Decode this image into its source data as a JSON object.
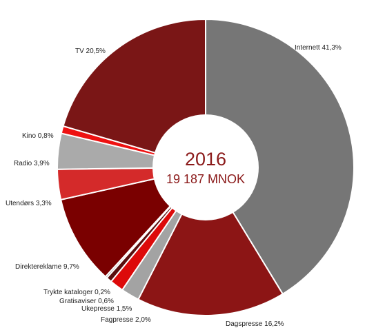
{
  "chart_data": {
    "type": "pie",
    "variant": "donut",
    "center_title": "2016",
    "center_subtitle": "19 187 MNOK",
    "start_angle_deg": 0,
    "direction": "clockwise",
    "slices": [
      {
        "name": "Internett",
        "value": 41.3,
        "label": "Internett 41,3%",
        "color": "#767676"
      },
      {
        "name": "Dagspresse",
        "value": 16.2,
        "label": "Dagspresse 16,2%",
        "color": "#8c1515"
      },
      {
        "name": "Fagpresse",
        "value": 2.0,
        "label": "Fagpresse 2,0%",
        "color": "#a3a3a3"
      },
      {
        "name": "Ukepresse",
        "value": 1.5,
        "label": "Ukepresse 1,5%",
        "color": "#dd0a0a"
      },
      {
        "name": "Gratisaviser",
        "value": 0.6,
        "label": "Gratisaviser 0,6%",
        "color": "#5a0f0f"
      },
      {
        "name": "Trykte kataloger",
        "value": 0.2,
        "label": "Trykte kataloger 0,2%",
        "color": "#8a8a8a"
      },
      {
        "name": "Direktereklame",
        "value": 9.7,
        "label": "Direktereklame 9,7%",
        "color": "#7a0000"
      },
      {
        "name": "Utendørs",
        "value": 3.3,
        "label": "Utendørs  3,3%",
        "color": "#d42a2a"
      },
      {
        "name": "Radio",
        "value": 3.9,
        "label": "Radio 3,9%",
        "color": "#aaaaaa"
      },
      {
        "name": "Kino",
        "value": 0.8,
        "label": "Kino 0,8%",
        "color": "#ee1111"
      },
      {
        "name": "TV",
        "value": 20.5,
        "label": "TV 20,5%",
        "color": "#7a1616"
      }
    ]
  }
}
